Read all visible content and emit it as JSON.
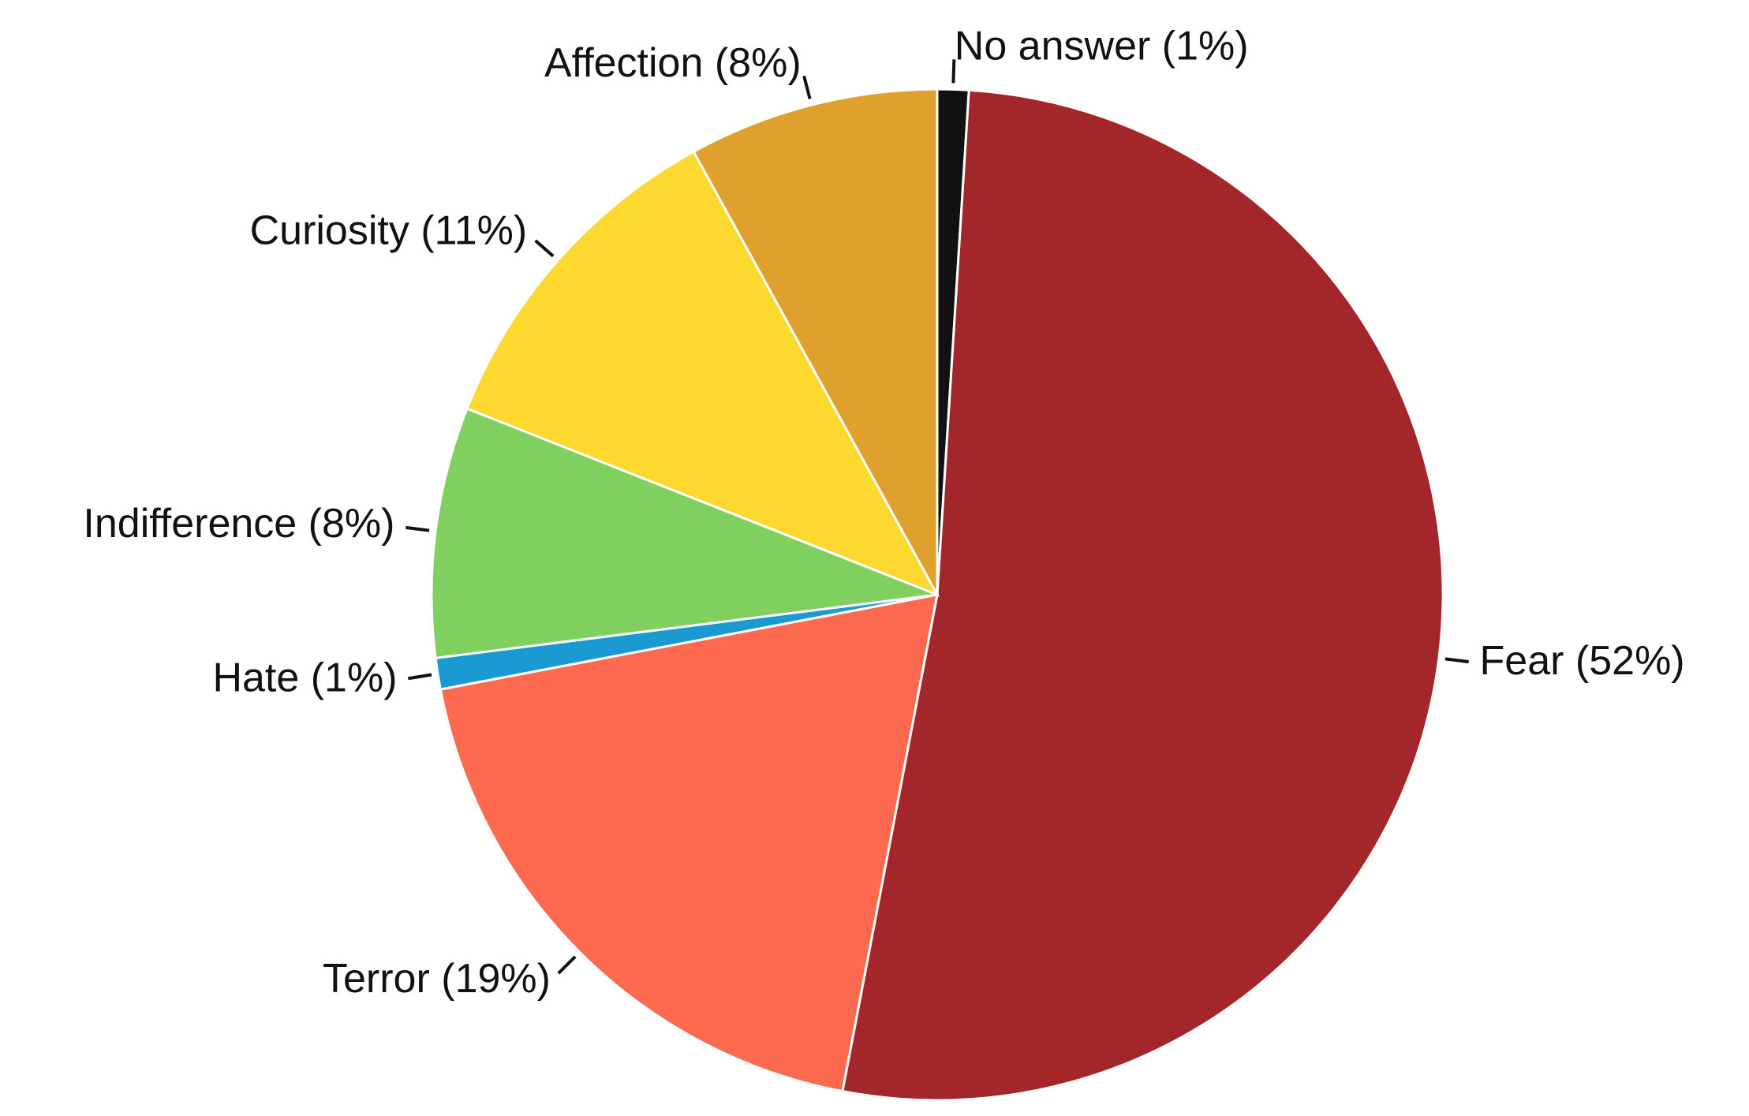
{
  "chart_data": {
    "type": "pie",
    "categories": [
      "No answer",
      "Fear",
      "Terror",
      "Hate",
      "Indifference",
      "Curiosity",
      "Affection"
    ],
    "values": [
      1,
      52,
      19,
      1,
      8,
      11,
      8
    ],
    "value_labels": [
      "(1%)",
      "(52%)",
      "(19%)",
      "(1%)",
      "(8%)",
      "(11%)",
      "(8%)"
    ],
    "colors": [
      "#111111",
      "#a3262a",
      "#fe6a50",
      "#1a9ad0",
      "#80d060",
      "#fdd82e",
      "#dfa02e"
    ]
  }
}
